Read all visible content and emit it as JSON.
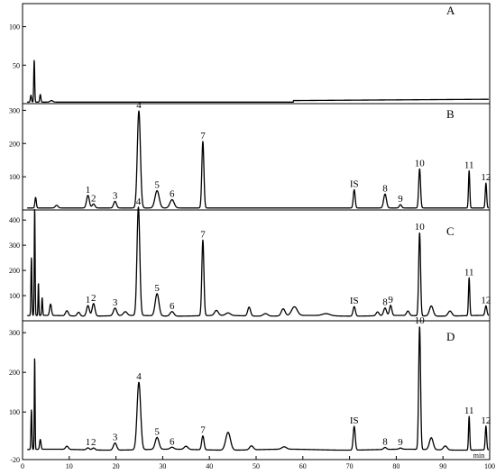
{
  "chart_data": {
    "type": "line",
    "title": "",
    "xlabel": "min",
    "xlim": [
      0,
      100
    ],
    "x_ticks": [
      0,
      10,
      20,
      30,
      40,
      50,
      60,
      70,
      80,
      90,
      100
    ],
    "line_color": "#000000",
    "panels": [
      {
        "letter": "A",
        "ylim": [
          0,
          130
        ],
        "y_ticks": [
          50,
          100
        ],
        "peaks": [
          {
            "label": "",
            "rt": 1.8,
            "height": 9,
            "width": 0.12
          },
          {
            "label": "",
            "rt": 2.5,
            "height": 55,
            "width": 0.1
          },
          {
            "label": "",
            "rt": 3.8,
            "height": 10,
            "width": 0.12
          },
          {
            "label": "",
            "rt": 6.2,
            "height": 2,
            "width": 0.3
          }
        ]
      },
      {
        "letter": "B",
        "ylim": [
          0,
          320
        ],
        "y_ticks": [
          100,
          200,
          300
        ],
        "peaks": [
          {
            "label": "",
            "rt": 2.8,
            "height": 32,
            "width": 0.15
          },
          {
            "label": "",
            "rt": 7.3,
            "height": 8,
            "width": 0.3
          },
          {
            "label": "1",
            "rt": 14.0,
            "height": 38,
            "width": 0.3
          },
          {
            "label": "2",
            "rt": 15.2,
            "height": 12,
            "width": 0.3
          },
          {
            "label": "3",
            "rt": 19.8,
            "height": 20,
            "width": 0.3
          },
          {
            "label": "4",
            "rt": 24.9,
            "height": 292,
            "width": 0.33
          },
          {
            "label": "5",
            "rt": 28.8,
            "height": 52,
            "width": 0.45
          },
          {
            "label": "6",
            "rt": 32.0,
            "height": 25,
            "width": 0.45
          },
          {
            "label": "7",
            "rt": 38.6,
            "height": 200,
            "width": 0.22
          },
          {
            "label": "IS",
            "rt": 71.0,
            "height": 55,
            "width": 0.2
          },
          {
            "label": "8",
            "rt": 77.6,
            "height": 42,
            "width": 0.3
          },
          {
            "label": "9",
            "rt": 80.9,
            "height": 10,
            "width": 0.25
          },
          {
            "label": "10",
            "rt": 85.0,
            "height": 118,
            "width": 0.2
          },
          {
            "label": "11",
            "rt": 95.6,
            "height": 112,
            "width": 0.14
          },
          {
            "label": "12",
            "rt": 99.2,
            "height": 75,
            "width": 0.15
          }
        ]
      },
      {
        "letter": "C",
        "ylim": [
          0,
          440
        ],
        "y_ticks": [
          100,
          200,
          300,
          400
        ],
        "peaks": [
          {
            "label": "",
            "rt": 1.9,
            "height": 230,
            "width": 0.1
          },
          {
            "label": "",
            "rt": 2.6,
            "height": 430,
            "width": 0.09
          },
          {
            "label": "",
            "rt": 3.4,
            "height": 130,
            "width": 0.08
          },
          {
            "label": "",
            "rt": 4.2,
            "height": 70,
            "width": 0.1
          },
          {
            "label": "",
            "rt": 6.0,
            "height": 45,
            "width": 0.2
          },
          {
            "label": "",
            "rt": 9.5,
            "height": 20,
            "width": 0.3
          },
          {
            "label": "",
            "rt": 12.0,
            "height": 15,
            "width": 0.3
          },
          {
            "label": "1",
            "rt": 14.0,
            "height": 42,
            "width": 0.3
          },
          {
            "label": "2",
            "rt": 15.2,
            "height": 50,
            "width": 0.3
          },
          {
            "label": "3",
            "rt": 19.8,
            "height": 30,
            "width": 0.35
          },
          {
            "label": "",
            "rt": 22.0,
            "height": 15,
            "width": 0.4
          },
          {
            "label": "4",
            "rt": 24.8,
            "height": 430,
            "width": 0.3
          },
          {
            "label": "5",
            "rt": 28.8,
            "height": 88,
            "width": 0.4
          },
          {
            "label": "6",
            "rt": 32.0,
            "height": 18,
            "width": 0.4
          },
          {
            "label": "7",
            "rt": 38.6,
            "height": 300,
            "width": 0.22
          },
          {
            "label": "",
            "rt": 41.5,
            "height": 20,
            "width": 0.4
          },
          {
            "label": "",
            "rt": 44.0,
            "height": 10,
            "width": 0.5
          },
          {
            "label": "",
            "rt": 48.5,
            "height": 35,
            "width": 0.3
          },
          {
            "label": "",
            "rt": 52.0,
            "height": 10,
            "width": 0.5
          },
          {
            "label": "",
            "rt": 55.8,
            "height": 28,
            "width": 0.4
          },
          {
            "label": "",
            "rt": 58.2,
            "height": 35,
            "width": 0.6
          },
          {
            "label": "",
            "rt": 65.0,
            "height": 8,
            "width": 0.8
          },
          {
            "label": "IS",
            "rt": 71.0,
            "height": 38,
            "width": 0.25
          },
          {
            "label": "",
            "rt": 76.0,
            "height": 15,
            "width": 0.3
          },
          {
            "label": "8",
            "rt": 77.6,
            "height": 30,
            "width": 0.3
          },
          {
            "label": "9",
            "rt": 78.8,
            "height": 40,
            "width": 0.25
          },
          {
            "label": "",
            "rt": 82.5,
            "height": 18,
            "width": 0.3
          },
          {
            "label": "10",
            "rt": 85.0,
            "height": 330,
            "width": 0.2
          },
          {
            "label": "",
            "rt": 87.5,
            "height": 40,
            "width": 0.4
          },
          {
            "label": "",
            "rt": 91.5,
            "height": 20,
            "width": 0.4
          },
          {
            "label": "11",
            "rt": 95.6,
            "height": 150,
            "width": 0.14
          },
          {
            "label": "12",
            "rt": 99.2,
            "height": 38,
            "width": 0.2
          }
        ]
      },
      {
        "letter": "D",
        "ylim": [
          -20,
          330
        ],
        "y_ticks": [
          -20,
          100,
          200,
          300
        ],
        "peaks": [
          {
            "label": "",
            "rt": 1.9,
            "height": 100,
            "width": 0.1
          },
          {
            "label": "",
            "rt": 2.6,
            "height": 235,
            "width": 0.08
          },
          {
            "label": "",
            "rt": 3.8,
            "height": 25,
            "width": 0.15
          },
          {
            "label": "",
            "rt": 9.5,
            "height": 8,
            "width": 0.3
          },
          {
            "label": "1",
            "rt": 14.0,
            "height": 5,
            "width": 0.3
          },
          {
            "label": "2",
            "rt": 15.2,
            "height": 5,
            "width": 0.3
          },
          {
            "label": "3",
            "rt": 19.8,
            "height": 18,
            "width": 0.35
          },
          {
            "label": "4",
            "rt": 24.9,
            "height": 170,
            "width": 0.38
          },
          {
            "label": "5",
            "rt": 28.8,
            "height": 30,
            "width": 0.4
          },
          {
            "label": "6",
            "rt": 32.0,
            "height": 5,
            "width": 0.4
          },
          {
            "label": "",
            "rt": 35.0,
            "height": 8,
            "width": 0.4
          },
          {
            "label": "7",
            "rt": 38.6,
            "height": 35,
            "width": 0.25
          },
          {
            "label": "",
            "rt": 44.0,
            "height": 45,
            "width": 0.5
          },
          {
            "label": "",
            "rt": 49.0,
            "height": 10,
            "width": 0.4
          },
          {
            "label": "",
            "rt": 56.0,
            "height": 6,
            "width": 0.5
          },
          {
            "label": "IS",
            "rt": 71.0,
            "height": 60,
            "width": 0.22
          },
          {
            "label": "8",
            "rt": 77.6,
            "height": 5,
            "width": 0.3
          },
          {
            "label": "9",
            "rt": 80.9,
            "height": 3,
            "width": 0.3
          },
          {
            "label": "10",
            "rt": 85.0,
            "height": 310,
            "width": 0.2
          },
          {
            "label": "",
            "rt": 87.5,
            "height": 30,
            "width": 0.4
          },
          {
            "label": "",
            "rt": 90.5,
            "height": 10,
            "width": 0.4
          },
          {
            "label": "11",
            "rt": 95.6,
            "height": 85,
            "width": 0.13
          },
          {
            "label": "12",
            "rt": 99.2,
            "height": 60,
            "width": 0.15
          }
        ]
      }
    ]
  }
}
